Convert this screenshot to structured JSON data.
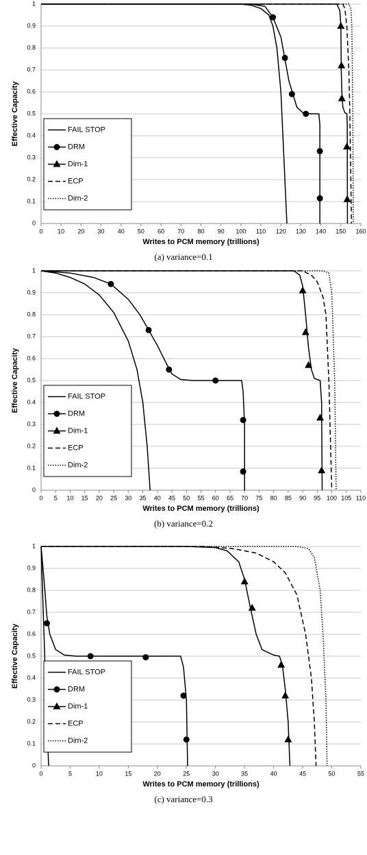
{
  "chart_data": [
    {
      "type": "line",
      "caption": "(a)  variance=0.1",
      "xlabel": "Writes to PCM memory (trillions)",
      "ylabel": "Effective Capacity",
      "xlim": [
        0,
        160
      ],
      "xticks": [
        0,
        10,
        20,
        30,
        40,
        50,
        60,
        70,
        80,
        90,
        100,
        110,
        120,
        130,
        140,
        150,
        160
      ],
      "ylim": [
        0,
        1
      ],
      "yticks": [
        0,
        0.1,
        0.2,
        0.3,
        0.4,
        0.5,
        0.6,
        0.7,
        0.8,
        0.9,
        1
      ],
      "grid": true,
      "legend": "lower left",
      "series": [
        {
          "name": "FAIL STOP",
          "color": "#000000",
          "dash": "solid",
          "marker": null,
          "x": [
            0,
            100,
            105,
            110,
            114,
            116,
            118,
            120,
            121,
            122,
            123
          ],
          "values": [
            1,
            1,
            0.995,
            0.98,
            0.95,
            0.9,
            0.8,
            0.6,
            0.4,
            0.2,
            0
          ]
        },
        {
          "name": "DRM",
          "color": "#000000",
          "dash": "solid",
          "marker": "circle",
          "x": [
            0,
            105,
            112,
            116,
            120,
            122,
            124,
            126,
            128,
            131,
            135,
            139,
            139.5,
            139.5
          ],
          "values": [
            1,
            1,
            0.99,
            0.94,
            0.85,
            0.75,
            0.65,
            0.59,
            0.53,
            0.505,
            0.5,
            0.5,
            0.45,
            0
          ],
          "markers": {
            "x": [
              116,
              122,
              125.5,
              132.5,
              139.5,
              139.5
            ],
            "values": [
              0.94,
              0.755,
              0.59,
              0.5,
              0.33,
              0.115
            ]
          }
        },
        {
          "name": "Dim-1",
          "color": "#000000",
          "dash": "solid",
          "marker": "triangle",
          "x": [
            0,
            148,
            149.5,
            150,
            150.2,
            150.5,
            151,
            152,
            153,
            153.2,
            153.3
          ],
          "values": [
            1,
            1,
            0.97,
            0.9,
            0.7,
            0.6,
            0.53,
            0.505,
            0.5,
            0.45,
            0
          ],
          "markers": {
            "x": [
              150,
              150.3,
              150.5,
              153,
              153.2
            ],
            "values": [
              0.9,
              0.72,
              0.57,
              0.35,
              0.11
            ]
          }
        },
        {
          "name": "ECP",
          "color": "#000000",
          "dash": "dashed",
          "marker": null,
          "x": [
            0,
            151,
            152,
            153,
            154,
            154.5,
            155,
            155.3
          ],
          "values": [
            1,
            1,
            0.98,
            0.9,
            0.7,
            0.5,
            0.2,
            0
          ]
        },
        {
          "name": "Dim-2",
          "color": "#000000",
          "dash": "dotted",
          "marker": null,
          "x": [
            0,
            154,
            155,
            155.5,
            156,
            156.2
          ],
          "values": [
            1,
            1,
            0.98,
            0.9,
            0.5,
            0
          ]
        }
      ]
    },
    {
      "type": "line",
      "caption": "(b)  variance=0.2",
      "xlabel": "Writes to PCM memory (trillions)",
      "ylabel": "Effective Capacity",
      "xlim": [
        0,
        110
      ],
      "xticks": [
        0,
        5,
        10,
        15,
        20,
        25,
        30,
        35,
        40,
        45,
        50,
        55,
        60,
        65,
        70,
        75,
        80,
        85,
        90,
        95,
        100,
        105,
        110
      ],
      "ylim": [
        0,
        1
      ],
      "yticks": [
        0,
        0.1,
        0.2,
        0.3,
        0.4,
        0.5,
        0.6,
        0.7,
        0.8,
        0.9,
        1
      ],
      "grid": true,
      "legend": "lower left",
      "series": [
        {
          "name": "FAIL STOP",
          "color": "#000000",
          "dash": "solid",
          "marker": null,
          "x": [
            0,
            5,
            10,
            15,
            20,
            25,
            30,
            33,
            35,
            36.5,
            37.5
          ],
          "values": [
            1,
            0.99,
            0.97,
            0.94,
            0.89,
            0.81,
            0.68,
            0.55,
            0.4,
            0.2,
            0
          ]
        },
        {
          "name": "DRM",
          "color": "#000000",
          "dash": "solid",
          "marker": "circle",
          "x": [
            0,
            10,
            18,
            24,
            30,
            34,
            37,
            40,
            43,
            45,
            48,
            52,
            69,
            69.5,
            70,
            70
          ],
          "values": [
            1,
            0.99,
            0.97,
            0.94,
            0.87,
            0.8,
            0.73,
            0.66,
            0.58,
            0.53,
            0.505,
            0.5,
            0.5,
            0.45,
            0.3,
            0
          ],
          "markers": {
            "x": [
              24,
              37,
              44,
              60,
              69.5,
              69.5
            ],
            "values": [
              0.94,
              0.73,
              0.55,
              0.5,
              0.32,
              0.085
            ]
          }
        },
        {
          "name": "Dim-1",
          "color": "#000000",
          "dash": "solid",
          "marker": "triangle",
          "x": [
            0,
            87,
            89,
            90,
            91,
            92,
            93,
            94,
            96,
            96.5,
            96.7
          ],
          "values": [
            1,
            1,
            0.98,
            0.93,
            0.8,
            0.65,
            0.55,
            0.51,
            0.5,
            0.4,
            0
          ],
          "markers": {
            "x": [
              90,
              91,
              92,
              96,
              96.5
            ],
            "values": [
              0.91,
              0.72,
              0.57,
              0.33,
              0.09
            ]
          }
        },
        {
          "name": "ECP",
          "color": "#000000",
          "dash": "dashed",
          "marker": null,
          "x": [
            0,
            90,
            93,
            95,
            97,
            98,
            99,
            100
          ],
          "values": [
            1,
            1,
            0.98,
            0.95,
            0.88,
            0.8,
            0.5,
            0
          ]
        },
        {
          "name": "Dim-2",
          "color": "#000000",
          "dash": "dotted",
          "marker": null,
          "x": [
            0,
            97,
            99,
            100,
            101,
            101.5
          ],
          "values": [
            1,
            1,
            0.99,
            0.9,
            0.5,
            0
          ]
        }
      ]
    },
    {
      "type": "line",
      "caption": "(c)  variance=0.3",
      "xlabel": "Writes to PCM memory (trillions)",
      "ylabel": "Effective Capacity",
      "xlim": [
        0,
        55
      ],
      "xticks": [
        0,
        5,
        10,
        15,
        20,
        25,
        30,
        35,
        40,
        45,
        50,
        55
      ],
      "ylim": [
        0,
        1
      ],
      "yticks": [
        0,
        0.1,
        0.2,
        0.3,
        0.4,
        0.5,
        0.6,
        0.7,
        0.8,
        0.9,
        1
      ],
      "grid": true,
      "legend": "lower left",
      "series": [
        {
          "name": "FAIL STOP",
          "color": "#000000",
          "dash": "solid",
          "marker": null,
          "x": [
            0,
            0.5,
            1,
            1.3
          ],
          "values": [
            1,
            0.6,
            0.2,
            0
          ]
        },
        {
          "name": "DRM",
          "color": "#000000",
          "dash": "solid",
          "marker": "circle",
          "x": [
            0,
            0.5,
            1,
            1.5,
            2.5,
            4,
            6,
            24,
            24.5,
            25,
            25.2
          ],
          "values": [
            1,
            0.85,
            0.68,
            0.6,
            0.53,
            0.505,
            0.5,
            0.5,
            0.45,
            0.3,
            0
          ],
          "markers": {
            "x": [
              1,
              8.5,
              18,
              24.5,
              25
            ],
            "values": [
              0.65,
              0.5,
              0.495,
              0.32,
              0.12
            ]
          }
        },
        {
          "name": "Dim-1",
          "color": "#000000",
          "dash": "solid",
          "marker": "triangle",
          "x": [
            0,
            25,
            30,
            32,
            34,
            35,
            36,
            37,
            38,
            40,
            41,
            41.5,
            42,
            42.5,
            42.8
          ],
          "values": [
            1,
            1,
            0.995,
            0.98,
            0.93,
            0.85,
            0.72,
            0.6,
            0.53,
            0.505,
            0.5,
            0.46,
            0.35,
            0.2,
            0
          ],
          "markers": {
            "x": [
              35,
              36.3,
              41.3,
              42,
              42.5
            ],
            "values": [
              0.84,
              0.72,
              0.46,
              0.32,
              0.12
            ]
          }
        },
        {
          "name": "ECP",
          "color": "#000000",
          "dash": "dashed",
          "marker": null,
          "x": [
            0,
            28,
            33,
            37,
            40,
            42,
            44,
            45.5,
            46.5,
            47,
            47.3
          ],
          "values": [
            1,
            1,
            0.99,
            0.97,
            0.93,
            0.88,
            0.78,
            0.6,
            0.4,
            0.2,
            0
          ]
        },
        {
          "name": "Dim-2",
          "color": "#000000",
          "dash": "dotted",
          "marker": null,
          "x": [
            0,
            44,
            46,
            47,
            48,
            48.5,
            49,
            49.2
          ],
          "values": [
            1,
            1,
            0.99,
            0.95,
            0.8,
            0.6,
            0.3,
            0
          ]
        }
      ]
    }
  ]
}
